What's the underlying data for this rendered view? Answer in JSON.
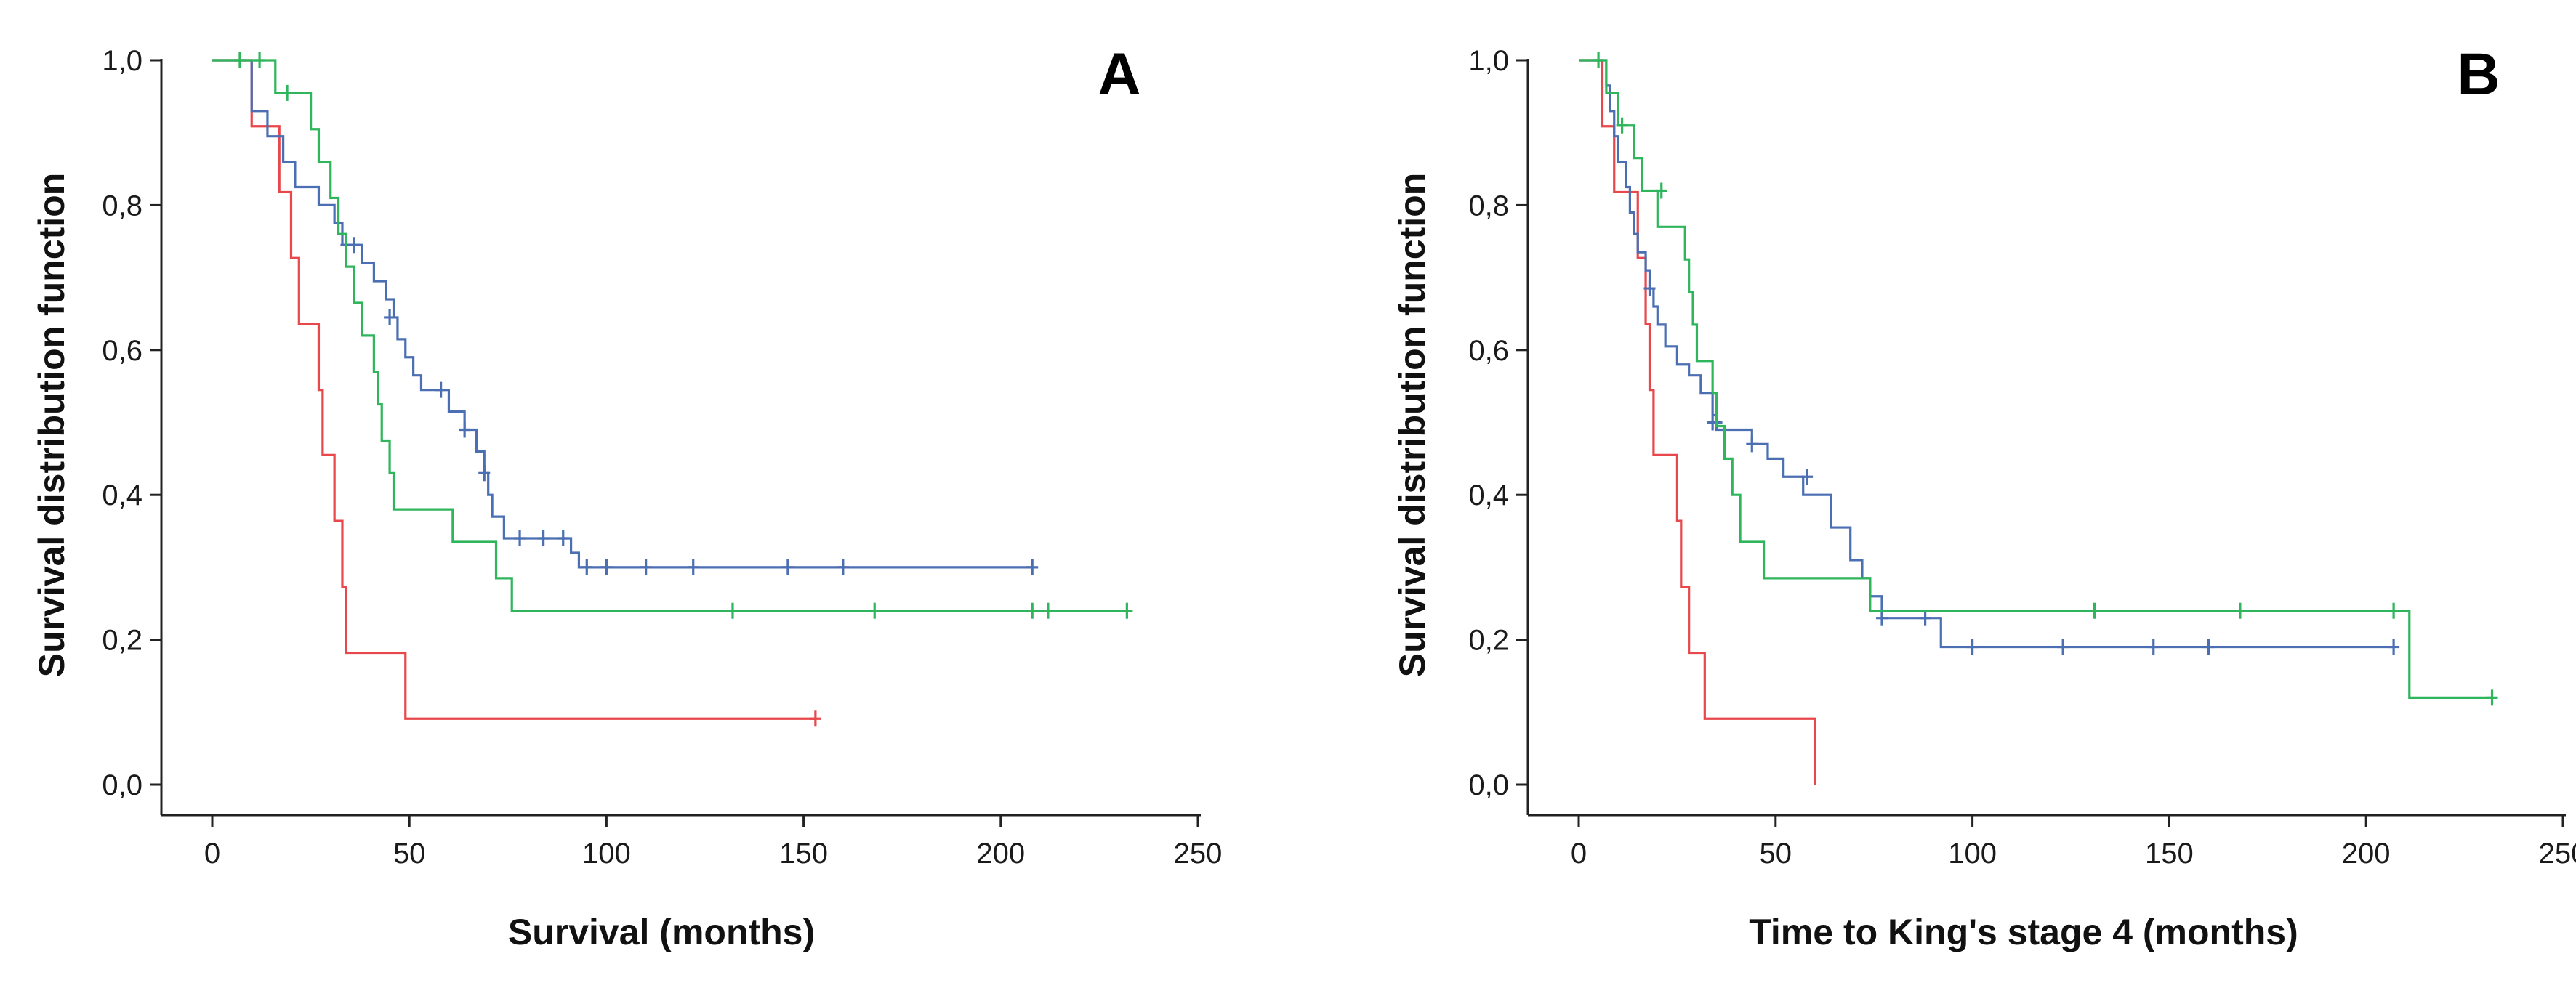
{
  "chart_data": [
    {
      "type": "line",
      "subtype": "kaplan-meier",
      "panel_label": "A",
      "xlabel": "Survival (months)",
      "ylabel": "Survival distribution function",
      "xlim": [
        0,
        250
      ],
      "ylim": [
        0,
        1
      ],
      "x_ticks": [
        0,
        50,
        100,
        150,
        200,
        250
      ],
      "x_tick_labels": [
        "0",
        "50",
        "100",
        "150",
        "200",
        "250"
      ],
      "y_ticks": [
        0,
        0.2,
        0.4,
        0.6,
        0.8,
        1.0
      ],
      "y_tick_labels": [
        "0,0",
        "0,2",
        "0,4",
        "0,6",
        "0,8",
        "1,0"
      ],
      "series": [
        {
          "name": "red",
          "color": "#e8474b",
          "steps": [
            [
              0,
              1.0
            ],
            [
              10,
              0.909
            ],
            [
              17,
              0.818
            ],
            [
              20,
              0.727
            ],
            [
              22,
              0.636
            ],
            [
              27,
              0.545
            ],
            [
              28,
              0.455
            ],
            [
              31,
              0.364
            ],
            [
              33,
              0.273
            ],
            [
              34,
              0.182
            ],
            [
              49,
              0.091
            ],
            [
              153,
              0.091
            ]
          ],
          "censored": [
            [
              153,
              0.091
            ]
          ]
        },
        {
          "name": "blue",
          "color": "#4b6fb2",
          "steps": [
            [
              0,
              1.0
            ],
            [
              10,
              0.93
            ],
            [
              14,
              0.895
            ],
            [
              18,
              0.86
            ],
            [
              21,
              0.825
            ],
            [
              27,
              0.8
            ],
            [
              31,
              0.775
            ],
            [
              33,
              0.745
            ],
            [
              38,
              0.72
            ],
            [
              41,
              0.695
            ],
            [
              44,
              0.67
            ],
            [
              46,
              0.645
            ],
            [
              47,
              0.615
            ],
            [
              49,
              0.59
            ],
            [
              51,
              0.565
            ],
            [
              53,
              0.545
            ],
            [
              60,
              0.515
            ],
            [
              64,
              0.49
            ],
            [
              67,
              0.46
            ],
            [
              69,
              0.43
            ],
            [
              70,
              0.4
            ],
            [
              71,
              0.37
            ],
            [
              74,
              0.34
            ],
            [
              91,
              0.32
            ],
            [
              93,
              0.3
            ],
            [
              208,
              0.3
            ]
          ],
          "censored": [
            [
              34,
              0.745
            ],
            [
              36,
              0.745
            ],
            [
              45,
              0.645
            ],
            [
              58,
              0.545
            ],
            [
              64,
              0.49
            ],
            [
              69,
              0.43
            ],
            [
              78,
              0.34
            ],
            [
              84,
              0.34
            ],
            [
              89,
              0.34
            ],
            [
              95,
              0.3
            ],
            [
              100,
              0.3
            ],
            [
              110,
              0.3
            ],
            [
              122,
              0.3
            ],
            [
              146,
              0.3
            ],
            [
              160,
              0.3
            ],
            [
              208,
              0.3
            ]
          ]
        },
        {
          "name": "green",
          "color": "#2fb55b",
          "steps": [
            [
              0,
              1.0
            ],
            [
              16,
              0.955
            ],
            [
              25,
              0.905
            ],
            [
              27,
              0.86
            ],
            [
              30,
              0.81
            ],
            [
              32,
              0.76
            ],
            [
              34,
              0.715
            ],
            [
              36,
              0.665
            ],
            [
              38,
              0.62
            ],
            [
              41,
              0.57
            ],
            [
              42,
              0.525
            ],
            [
              43,
              0.475
            ],
            [
              45,
              0.43
            ],
            [
              46,
              0.38
            ],
            [
              61,
              0.335
            ],
            [
              72,
              0.285
            ],
            [
              76,
              0.24
            ],
            [
              232,
              0.24
            ]
          ],
          "censored": [
            [
              7,
              1.0
            ],
            [
              12,
              1.0
            ],
            [
              19,
              0.955
            ],
            [
              132,
              0.24
            ],
            [
              168,
              0.24
            ],
            [
              208,
              0.24
            ],
            [
              212,
              0.24
            ],
            [
              232,
              0.24
            ]
          ]
        }
      ]
    },
    {
      "type": "line",
      "subtype": "kaplan-meier",
      "panel_label": "B",
      "xlabel": "Time to King's stage 4 (months)",
      "ylabel": "Survival distribution function",
      "xlim": [
        0,
        250
      ],
      "ylim": [
        0,
        1
      ],
      "x_ticks": [
        0,
        50,
        100,
        150,
        200,
        250
      ],
      "x_tick_labels": [
        "0",
        "50",
        "100",
        "150",
        "200",
        "250"
      ],
      "y_ticks": [
        0,
        0.2,
        0.4,
        0.6,
        0.8,
        1.0
      ],
      "y_tick_labels": [
        "0,0",
        "0,2",
        "0,4",
        "0,6",
        "0,8",
        "1,0"
      ],
      "series": [
        {
          "name": "red",
          "color": "#e8474b",
          "steps": [
            [
              0,
              1.0
            ],
            [
              6,
              0.909
            ],
            [
              9,
              0.818
            ],
            [
              15,
              0.727
            ],
            [
              17,
              0.636
            ],
            [
              18,
              0.545
            ],
            [
              19,
              0.455
            ],
            [
              25,
              0.364
            ],
            [
              26,
              0.273
            ],
            [
              28,
              0.182
            ],
            [
              32,
              0.091
            ],
            [
              60,
              0.0
            ]
          ],
          "censored": []
        },
        {
          "name": "blue",
          "color": "#4b6fb2",
          "steps": [
            [
              0,
              1.0
            ],
            [
              7,
              0.965
            ],
            [
              8,
              0.93
            ],
            [
              9,
              0.895
            ],
            [
              10,
              0.86
            ],
            [
              12,
              0.825
            ],
            [
              13,
              0.79
            ],
            [
              14,
              0.76
            ],
            [
              15,
              0.735
            ],
            [
              17,
              0.71
            ],
            [
              18,
              0.685
            ],
            [
              19,
              0.66
            ],
            [
              20,
              0.635
            ],
            [
              22,
              0.605
            ],
            [
              25,
              0.58
            ],
            [
              28,
              0.565
            ],
            [
              31,
              0.54
            ],
            [
              34,
              0.51
            ],
            [
              35,
              0.49
            ],
            [
              44,
              0.47
            ],
            [
              48,
              0.45
            ],
            [
              52,
              0.425
            ],
            [
              57,
              0.4
            ],
            [
              64,
              0.355
            ],
            [
              69,
              0.31
            ],
            [
              72,
              0.285
            ],
            [
              74,
              0.26
            ],
            [
              77,
              0.23
            ],
            [
              92,
              0.19
            ],
            [
              207,
              0.19
            ]
          ],
          "censored": [
            [
              18,
              0.685
            ],
            [
              34,
              0.5
            ],
            [
              35,
              0.5
            ],
            [
              44,
              0.47
            ],
            [
              58,
              0.425
            ],
            [
              77,
              0.23
            ],
            [
              88,
              0.23
            ],
            [
              100,
              0.19
            ],
            [
              123,
              0.19
            ],
            [
              146,
              0.19
            ],
            [
              160,
              0.19
            ],
            [
              207,
              0.19
            ]
          ]
        },
        {
          "name": "green",
          "color": "#2fb55b",
          "steps": [
            [
              0,
              1.0
            ],
            [
              7,
              0.955
            ],
            [
              10,
              0.91
            ],
            [
              14,
              0.865
            ],
            [
              16,
              0.82
            ],
            [
              20,
              0.77
            ],
            [
              27,
              0.725
            ],
            [
              28,
              0.68
            ],
            [
              29,
              0.635
            ],
            [
              30,
              0.585
            ],
            [
              34,
              0.54
            ],
            [
              35,
              0.495
            ],
            [
              37,
              0.45
            ],
            [
              39,
              0.4
            ],
            [
              41,
              0.335
            ],
            [
              47,
              0.285
            ],
            [
              74,
              0.24
            ],
            [
              211,
              0.12
            ],
            [
              232,
              0.12
            ]
          ],
          "censored": [
            [
              5,
              1.0
            ],
            [
              11,
              0.91
            ],
            [
              21,
              0.82
            ],
            [
              131,
              0.24
            ],
            [
              168,
              0.24
            ],
            [
              207,
              0.24
            ],
            [
              232,
              0.12
            ]
          ]
        }
      ]
    }
  ]
}
